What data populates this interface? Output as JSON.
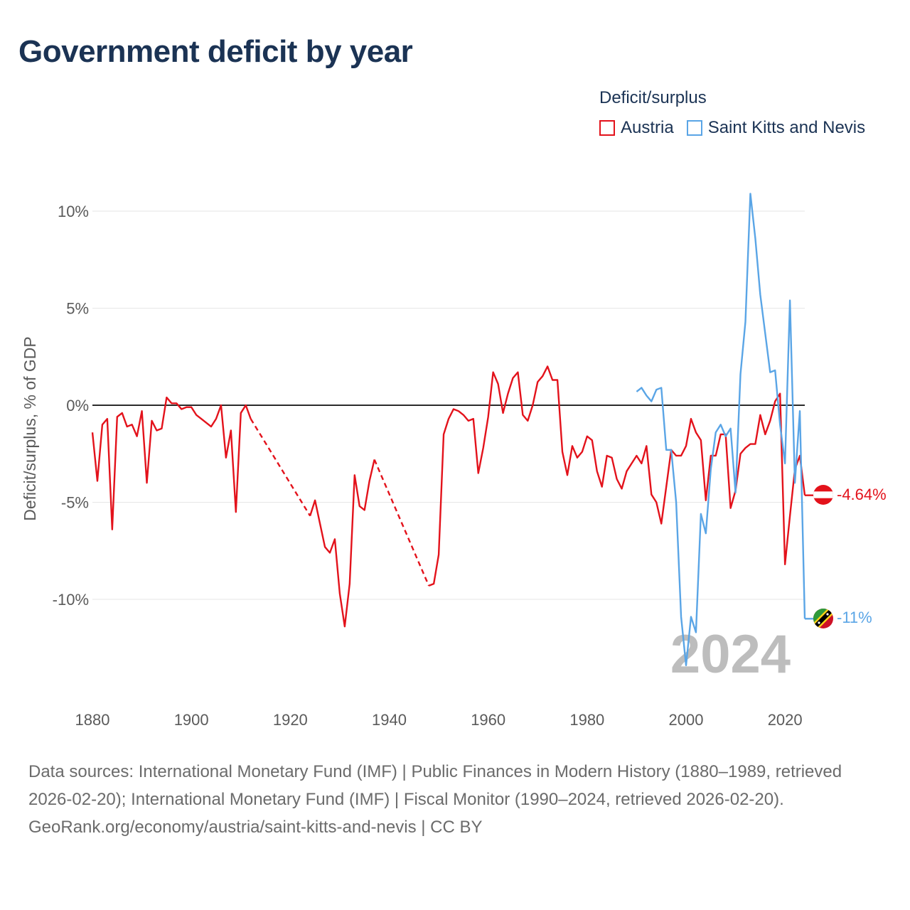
{
  "title": "Government deficit by year",
  "legend": {
    "title": "Deficit/surplus",
    "items": [
      {
        "label": "Austria",
        "color": "#e3121b"
      },
      {
        "label": "Saint Kitts and Nevis",
        "color": "#5aa5e6"
      }
    ]
  },
  "footer": {
    "sources": "Data sources: International Monetary Fund (IMF) | Public Finances in Modern History (1880–1989, retrieved 2026-02-20); International Monetary Fund (IMF) | Fiscal Monitor (1990–2024, retrieved 2026-02-20).",
    "link": "GeoRank.org/economy/austria/saint-kitts-and-nevis | CC BY"
  },
  "chart_data": {
    "type": "line",
    "title": "Government deficit by year",
    "xlabel": "",
    "ylabel": "Deficit/surplus, % of GDP",
    "xlim": [
      1880,
      2024
    ],
    "ylim": [
      -15,
      12
    ],
    "x_ticks": [
      1880,
      1900,
      1920,
      1940,
      1960,
      1980,
      2000,
      2020
    ],
    "x_tick_labels": [
      "1880",
      "1900",
      "1920",
      "1940",
      "1960",
      "1980",
      "2000",
      "2020"
    ],
    "y_ticks": [
      10,
      5,
      0,
      -5,
      -10
    ],
    "y_tick_labels": [
      "10%",
      "5%",
      "0%",
      "-5%",
      "-10%"
    ],
    "year_watermark": "2024",
    "series": [
      {
        "name": "Austria",
        "color": "#e3121b",
        "end_label": "-4.64%",
        "flag": "Austria",
        "gaps_dashed": true,
        "points": [
          [
            1880,
            -1.4
          ],
          [
            1881,
            -3.9
          ],
          [
            1882,
            -1.0
          ],
          [
            1883,
            -0.7
          ],
          [
            1884,
            -6.4
          ],
          [
            1885,
            -0.6
          ],
          [
            1886,
            -0.4
          ],
          [
            1887,
            -1.1
          ],
          [
            1888,
            -1.0
          ],
          [
            1889,
            -1.6
          ],
          [
            1890,
            -0.3
          ],
          [
            1891,
            -4.0
          ],
          [
            1892,
            -0.8
          ],
          [
            1893,
            -1.3
          ],
          [
            1894,
            -1.2
          ],
          [
            1895,
            0.4
          ],
          [
            1896,
            0.1
          ],
          [
            1897,
            0.1
          ],
          [
            1898,
            -0.2
          ],
          [
            1899,
            -0.1
          ],
          [
            1900,
            -0.1
          ],
          [
            1901,
            -0.5
          ],
          [
            1902,
            -0.7
          ],
          [
            1903,
            -0.9
          ],
          [
            1904,
            -1.1
          ],
          [
            1905,
            -0.7
          ],
          [
            1906,
            0.0
          ],
          [
            1907,
            -2.7
          ],
          [
            1908,
            -1.3
          ],
          [
            1909,
            -5.5
          ],
          [
            1910,
            -0.4
          ],
          [
            1911,
            0.0
          ],
          [
            1912,
            -0.7
          ],
          [
            1924,
            -5.7
          ],
          [
            1925,
            -4.9
          ],
          [
            1926,
            -6.1
          ],
          [
            1927,
            -7.3
          ],
          [
            1928,
            -7.6
          ],
          [
            1929,
            -6.9
          ],
          [
            1930,
            -9.7
          ],
          [
            1931,
            -11.4
          ],
          [
            1932,
            -9.2
          ],
          [
            1933,
            -3.6
          ],
          [
            1934,
            -5.2
          ],
          [
            1935,
            -5.4
          ],
          [
            1936,
            -3.9
          ],
          [
            1937,
            -2.8
          ],
          [
            1948,
            -9.3
          ],
          [
            1949,
            -9.2
          ],
          [
            1950,
            -7.7
          ],
          [
            1951,
            -1.5
          ],
          [
            1952,
            -0.7
          ],
          [
            1953,
            -0.2
          ],
          [
            1954,
            -0.3
          ],
          [
            1955,
            -0.5
          ],
          [
            1956,
            -0.8
          ],
          [
            1957,
            -0.7
          ],
          [
            1958,
            -3.5
          ],
          [
            1959,
            -2.2
          ],
          [
            1960,
            -0.6
          ],
          [
            1961,
            1.7
          ],
          [
            1962,
            1.1
          ],
          [
            1963,
            -0.4
          ],
          [
            1964,
            0.6
          ],
          [
            1965,
            1.4
          ],
          [
            1966,
            1.7
          ],
          [
            1967,
            -0.5
          ],
          [
            1968,
            -0.8
          ],
          [
            1969,
            0.0
          ],
          [
            1970,
            1.2
          ],
          [
            1971,
            1.5
          ],
          [
            1972,
            2.0
          ],
          [
            1973,
            1.3
          ],
          [
            1974,
            1.3
          ],
          [
            1975,
            -2.4
          ],
          [
            1976,
            -3.6
          ],
          [
            1977,
            -2.1
          ],
          [
            1978,
            -2.7
          ],
          [
            1979,
            -2.4
          ],
          [
            1980,
            -1.6
          ],
          [
            1981,
            -1.8
          ],
          [
            1982,
            -3.4
          ],
          [
            1983,
            -4.2
          ],
          [
            1984,
            -2.6
          ],
          [
            1985,
            -2.7
          ],
          [
            1986,
            -3.8
          ],
          [
            1987,
            -4.3
          ],
          [
            1988,
            -3.4
          ],
          [
            1989,
            -3.0
          ],
          [
            1990,
            -2.6
          ],
          [
            1991,
            -3.0
          ],
          [
            1992,
            -2.1
          ],
          [
            1993,
            -4.6
          ],
          [
            1994,
            -5.0
          ],
          [
            1995,
            -6.1
          ],
          [
            1996,
            -4.2
          ],
          [
            1997,
            -2.3
          ],
          [
            1998,
            -2.6
          ],
          [
            1999,
            -2.6
          ],
          [
            2000,
            -2.1
          ],
          [
            2001,
            -0.7
          ],
          [
            2002,
            -1.4
          ],
          [
            2003,
            -1.8
          ],
          [
            2004,
            -4.9
          ],
          [
            2005,
            -2.6
          ],
          [
            2006,
            -2.6
          ],
          [
            2007,
            -1.5
          ],
          [
            2008,
            -1.5
          ],
          [
            2009,
            -5.3
          ],
          [
            2010,
            -4.4
          ],
          [
            2011,
            -2.5
          ],
          [
            2012,
            -2.2
          ],
          [
            2013,
            -2.0
          ],
          [
            2014,
            -2.0
          ],
          [
            2015,
            -0.5
          ],
          [
            2016,
            -1.5
          ],
          [
            2017,
            -0.8
          ],
          [
            2018,
            0.2
          ],
          [
            2019,
            0.6
          ],
          [
            2020,
            -8.2
          ],
          [
            2021,
            -5.7
          ],
          [
            2022,
            -3.3
          ],
          [
            2023,
            -2.6
          ],
          [
            2024,
            -4.64
          ]
        ]
      },
      {
        "name": "Saint Kitts and Nevis",
        "color": "#5aa5e6",
        "end_label": "-11%",
        "flag": "Saint Kitts and Nevis",
        "gaps_dashed": false,
        "points": [
          [
            1990,
            0.7
          ],
          [
            1991,
            0.9
          ],
          [
            1992,
            0.5
          ],
          [
            1993,
            0.2
          ],
          [
            1994,
            0.8
          ],
          [
            1995,
            0.9
          ],
          [
            1996,
            -2.3
          ],
          [
            1997,
            -2.3
          ],
          [
            1998,
            -5.0
          ],
          [
            1999,
            -10.9
          ],
          [
            2000,
            -13.4
          ],
          [
            2001,
            -10.9
          ],
          [
            2002,
            -11.7
          ],
          [
            2003,
            -5.6
          ],
          [
            2004,
            -6.6
          ],
          [
            2005,
            -3.3
          ],
          [
            2006,
            -1.4
          ],
          [
            2007,
            -1.0
          ],
          [
            2008,
            -1.6
          ],
          [
            2009,
            -1.2
          ],
          [
            2010,
            -4.5
          ],
          [
            2011,
            1.6
          ],
          [
            2012,
            4.3
          ],
          [
            2013,
            10.9
          ],
          [
            2014,
            8.6
          ],
          [
            2015,
            5.7
          ],
          [
            2016,
            3.7
          ],
          [
            2017,
            1.7
          ],
          [
            2018,
            1.8
          ],
          [
            2019,
            -1.0
          ],
          [
            2020,
            -3.0
          ],
          [
            2021,
            5.4
          ],
          [
            2022,
            -4.0
          ],
          [
            2023,
            -0.3
          ],
          [
            2024,
            -11.0
          ]
        ]
      }
    ]
  }
}
